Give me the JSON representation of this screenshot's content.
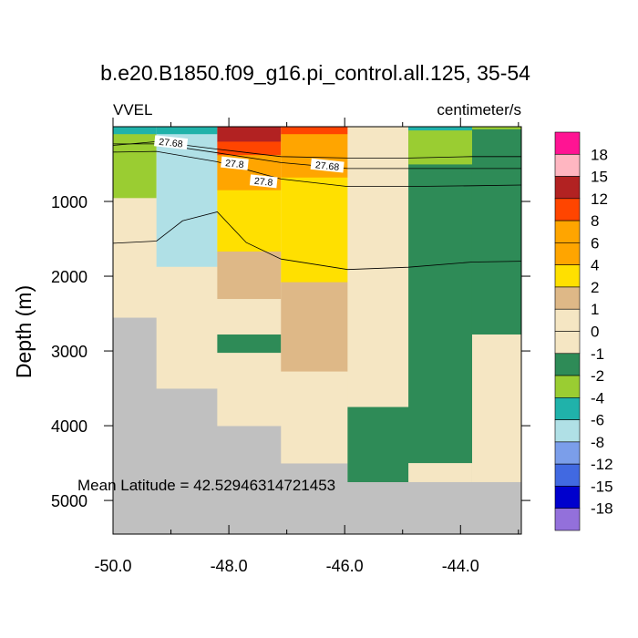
{
  "chart_data": {
    "type": "heatmap",
    "title": "b.e20.B1850.f09_g16.pi_control.all.125, 35-54",
    "left_label": "VVEL",
    "right_label": "centimeter/s",
    "ylabel": "Depth (m)",
    "xlabel": "",
    "annotation": "Mean Latitude = 42.52946314721453",
    "xlim": [
      -50.0,
      -42.95
    ],
    "ylim": [
      0,
      5450
    ],
    "y_inverted": true,
    "x_ticks": [
      -50.0,
      -48.0,
      -46.0,
      -44.0
    ],
    "x_tick_labels": [
      "-50.0",
      "-48.0",
      "-46.0",
      "-44.0"
    ],
    "y_ticks": [
      1000,
      2000,
      3000,
      4000,
      5000
    ],
    "y_tick_labels": [
      "1000",
      "2000",
      "3000",
      "4000",
      "5000"
    ],
    "colorbar": {
      "labels": [
        "18",
        "15",
        "12",
        "8",
        "6",
        "4",
        "2",
        "1",
        "0",
        "-1",
        "-2",
        "-4",
        "-6",
        "-8",
        "-12",
        "-15",
        "-18"
      ],
      "colors": [
        "#ff1493",
        "#ffb6c1",
        "#b22222",
        "#ff4500",
        "#ffa500",
        "#ffa500",
        "#ffe000",
        "#deb887",
        "#f5e6c3",
        "#f5e6c3",
        "#2e8b57",
        "#9acd32",
        "#20b2aa",
        "#b0e0e6",
        "#7b9eea",
        "#4169e1",
        "#0000cd",
        "#9370db"
      ]
    },
    "colors": {
      "land": "#c0c0c0",
      "v_pos18": "#ff1493",
      "v_pos15": "#ffb6c1",
      "v_pos12": "#b22222",
      "v_pos8": "#ff4500",
      "v_pos6": "#ffa500",
      "v_pos4": "#ffe000",
      "v_pos2": "#deb887",
      "v_pos1": "#f5e6c3",
      "v_neg1": "#2e8b57",
      "v_neg2": "#9acd32",
      "v_neg4": "#20b2aa",
      "v_neg6": "#b0e0e6",
      "v_neg8": "#7b9eea",
      "v_neg12": "#4169e1",
      "v_neg15": "#0000cd",
      "v_neg18": "#9370db"
    },
    "cells": [
      {
        "x0": -50.0,
        "x1": -42.95,
        "y0": 0,
        "y1": 5450,
        "c": "land"
      },
      {
        "x0": -50.0,
        "x1": -49.25,
        "y0": 0,
        "y1": 2550,
        "c": "v_pos1"
      },
      {
        "x0": -50.0,
        "x1": -49.25,
        "y0": 0,
        "y1": 100,
        "c": "v_neg4"
      },
      {
        "x0": -50.0,
        "x1": -49.25,
        "y0": 100,
        "y1": 950,
        "c": "v_neg2"
      },
      {
        "x0": -49.25,
        "x1": -48.2,
        "y0": 0,
        "y1": 3500,
        "c": "v_pos1"
      },
      {
        "x0": -49.25,
        "x1": -48.2,
        "y0": 0,
        "y1": 100,
        "c": "v_neg4"
      },
      {
        "x0": -49.25,
        "x1": -48.2,
        "y0": 100,
        "y1": 1870,
        "c": "v_neg6"
      },
      {
        "x0": -48.2,
        "x1": -47.1,
        "y0": 0,
        "y1": 4000,
        "c": "v_pos1"
      },
      {
        "x0": -48.2,
        "x1": -47.1,
        "y0": 0,
        "y1": 200,
        "c": "v_pos12"
      },
      {
        "x0": -48.2,
        "x1": -47.1,
        "y0": 200,
        "y1": 380,
        "c": "v_pos8"
      },
      {
        "x0": -48.2,
        "x1": -47.1,
        "y0": 380,
        "y1": 850,
        "c": "v_pos6"
      },
      {
        "x0": -48.2,
        "x1": -47.1,
        "y0": 850,
        "y1": 1670,
        "c": "v_pos4"
      },
      {
        "x0": -48.2,
        "x1": -47.1,
        "y0": 1670,
        "y1": 2300,
        "c": "v_pos2"
      },
      {
        "x0": -48.2,
        "x1": -47.1,
        "y0": 2780,
        "y1": 3020,
        "c": "v_neg1"
      },
      {
        "x0": -47.1,
        "x1": -45.95,
        "y0": 0,
        "y1": 4500,
        "c": "v_pos1"
      },
      {
        "x0": -47.1,
        "x1": -45.95,
        "y0": 0,
        "y1": 100,
        "c": "v_pos8"
      },
      {
        "x0": -47.1,
        "x1": -45.95,
        "y0": 100,
        "y1": 680,
        "c": "v_pos6"
      },
      {
        "x0": -47.1,
        "x1": -45.95,
        "y0": 680,
        "y1": 2080,
        "c": "v_pos4"
      },
      {
        "x0": -47.1,
        "x1": -45.95,
        "y0": 2080,
        "y1": 3270,
        "c": "v_pos2"
      },
      {
        "x0": -45.95,
        "x1": -44.9,
        "y0": 0,
        "y1": 4750,
        "c": "v_pos1"
      },
      {
        "x0": -45.95,
        "x1": -44.9,
        "y0": 3750,
        "y1": 4750,
        "c": "v_neg1"
      },
      {
        "x0": -44.9,
        "x1": -43.8,
        "y0": 0,
        "y1": 4750,
        "c": "v_neg1"
      },
      {
        "x0": -44.9,
        "x1": -43.8,
        "y0": 0,
        "y1": 50,
        "c": "v_neg4"
      },
      {
        "x0": -44.9,
        "x1": -43.8,
        "y0": 50,
        "y1": 500,
        "c": "v_neg2"
      },
      {
        "x0": -44.9,
        "x1": -43.8,
        "y0": 4500,
        "y1": 4750,
        "c": "v_pos1"
      },
      {
        "x0": -43.8,
        "x1": -42.95,
        "y0": 0,
        "y1": 4750,
        "c": "v_neg1"
      },
      {
        "x0": -43.8,
        "x1": -42.95,
        "y0": 0,
        "y1": 30,
        "c": "v_neg2"
      },
      {
        "x0": -43.8,
        "x1": -42.95,
        "y0": 2780,
        "y1": 4750,
        "c": "v_pos1"
      }
    ],
    "contours": [
      {
        "name": "contour-upper-1",
        "points": [
          [
            -50.0,
            250
          ],
          [
            -49.25,
            200
          ],
          [
            -48.2,
            300
          ],
          [
            -47.1,
            400
          ],
          [
            -45.95,
            420
          ],
          [
            -44.9,
            420
          ],
          [
            -43.8,
            400
          ],
          [
            -42.95,
            400
          ]
        ]
      },
      {
        "name": "contour-27.68",
        "points": [
          [
            -50.0,
            230
          ],
          [
            -49.25,
            230
          ],
          [
            -48.2,
            350
          ],
          [
            -47.1,
            480
          ],
          [
            -45.95,
            560
          ],
          [
            -44.9,
            560
          ],
          [
            -43.8,
            560
          ],
          [
            -42.95,
            560
          ]
        ]
      },
      {
        "name": "contour-27.8",
        "points": [
          [
            -50.0,
            340
          ],
          [
            -49.25,
            330
          ],
          [
            -48.2,
            470
          ],
          [
            -47.1,
            700
          ],
          [
            -45.95,
            800
          ],
          [
            -44.9,
            800
          ],
          [
            -43.8,
            790
          ],
          [
            -42.95,
            780
          ]
        ]
      },
      {
        "name": "contour-deep",
        "points": [
          [
            -50.0,
            1560
          ],
          [
            -49.25,
            1530
          ],
          [
            -48.8,
            1260
          ],
          [
            -48.2,
            1140
          ],
          [
            -47.7,
            1550
          ],
          [
            -47.1,
            1770
          ],
          [
            -45.95,
            1910
          ],
          [
            -44.9,
            1880
          ],
          [
            -43.8,
            1810
          ],
          [
            -42.95,
            1800
          ]
        ]
      }
    ],
    "contour_labels": [
      {
        "text": "27.68",
        "x": -49.0,
        "y": 210
      },
      {
        "text": "27.8",
        "x": -47.9,
        "y": 490
      },
      {
        "text": "27.68",
        "x": -46.3,
        "y": 520
      },
      {
        "text": "27.8",
        "x": -47.4,
        "y": 730
      }
    ]
  }
}
